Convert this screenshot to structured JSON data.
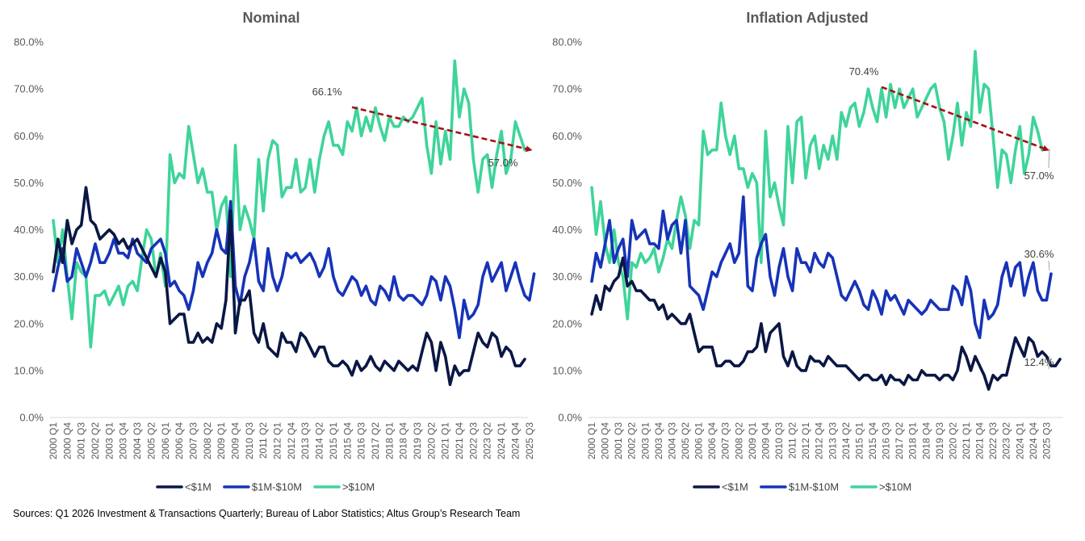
{
  "source": "Sources: Q1 2026 Investment & Transactions Quarterly; Bureau of Labor Statistics; Altus Group’s Research Team",
  "colors": {
    "lt1m": "#0a1744",
    "m1to10": "#1733b8",
    "gt10m": "#3fd49a",
    "trend": "#a50f15",
    "axis": "#d9d9d9",
    "text": "#595959"
  },
  "chart_data": [
    {
      "type": "line",
      "title": "Nominal",
      "ylim": [
        0,
        80
      ],
      "yticks": [
        0,
        10,
        20,
        30,
        40,
        50,
        60,
        70,
        80
      ],
      "yticklabels": [
        "0.0%",
        "10.0%",
        "20.0%",
        "30.0%",
        "40.0%",
        "50.0%",
        "60.0%",
        "70.0%",
        "80.0%"
      ],
      "x_labels": [
        "2000 Q1",
        "2000 Q4",
        "2001 Q3",
        "2002 Q2",
        "2003 Q1",
        "2003 Q4",
        "2004 Q3",
        "2005 Q2",
        "2006 Q1",
        "2006 Q4",
        "2007 Q3",
        "2008 Q2",
        "2009 Q1",
        "2009 Q4",
        "2010 Q3",
        "2011 Q2",
        "2012 Q1",
        "2012 Q4",
        "2013 Q3",
        "2014 Q2",
        "2015 Q1",
        "2015 Q4",
        "2016 Q3",
        "2017 Q2",
        "2018 Q1",
        "2018 Q4",
        "2019 Q3",
        "2020 Q2",
        "2021 Q1",
        "2021 Q4",
        "2022 Q3",
        "2023 Q2",
        "2024 Q1",
        "2024 Q4",
        "2025 Q3"
      ],
      "legend": [
        "<$1M",
        "$1M-$10M",
        ">$10M"
      ],
      "legend_position": "bottom",
      "series": [
        {
          "name": "<$1M",
          "values": [
            31,
            38,
            33,
            42,
            37,
            40,
            41,
            49,
            42,
            41,
            38,
            39,
            40,
            39,
            37,
            38,
            36,
            37,
            38,
            36,
            34,
            32,
            30,
            34,
            31,
            20,
            21,
            22,
            22,
            16,
            16,
            18,
            16,
            17,
            16,
            20,
            19,
            25,
            44,
            18,
            25,
            25,
            27,
            18,
            16,
            20,
            15,
            14,
            13,
            18,
            16,
            16,
            14,
            18,
            17,
            15,
            13,
            15,
            15,
            12,
            11,
            11,
            12,
            11,
            9,
            12,
            10,
            11,
            13,
            11,
            10,
            12,
            11,
            10,
            12,
            11,
            10,
            11,
            10,
            14,
            18,
            16,
            10,
            16,
            13,
            7,
            11,
            9,
            10,
            10,
            14,
            18,
            16,
            15,
            18,
            17,
            13,
            15,
            14,
            11,
            11,
            12.4
          ]
        },
        {
          "name": "$1M-$10M",
          "values": [
            27,
            32,
            36,
            29,
            30,
            36,
            33,
            30,
            33,
            37,
            33,
            33,
            35,
            38,
            35,
            35,
            34,
            38,
            35,
            34,
            33,
            36,
            37,
            38,
            35,
            28,
            29,
            27,
            26,
            23,
            27,
            33,
            30,
            33,
            35,
            40,
            36,
            35,
            46,
            28,
            24,
            30,
            33,
            38,
            29,
            27,
            36,
            30,
            27,
            30,
            35,
            34,
            35,
            33,
            34,
            35,
            33,
            30,
            32,
            36,
            30,
            27,
            26,
            28,
            30,
            29,
            26,
            28,
            25,
            24,
            28,
            27,
            25,
            30,
            26,
            25,
            26,
            26,
            25,
            24,
            26,
            30,
            29,
            25,
            30,
            28,
            23,
            17,
            25,
            21,
            22,
            24,
            30,
            33,
            29,
            31,
            33,
            27,
            30,
            33,
            29,
            26,
            25,
            30.6
          ]
        },
        {
          "name": ">$10M",
          "values": [
            42,
            33,
            40,
            30,
            21,
            33,
            31,
            30,
            15,
            26,
            26,
            27,
            24,
            26,
            28,
            24,
            28,
            29,
            27,
            34,
            40,
            38,
            30,
            35,
            28,
            56,
            50,
            52,
            51,
            62,
            56,
            50,
            53,
            48,
            48,
            40,
            45,
            47,
            30,
            58,
            40,
            45,
            42,
            38,
            55,
            44,
            55,
            59,
            58,
            47,
            49,
            49,
            55,
            48,
            49,
            55,
            48,
            55,
            60,
            63,
            58,
            58,
            56,
            63,
            61,
            66,
            60,
            64,
            61,
            66,
            62,
            59,
            64,
            62,
            62,
            64,
            63,
            64,
            66,
            68,
            58,
            52,
            63,
            54,
            61,
            55,
            76,
            64,
            70,
            67,
            55,
            48,
            55,
            56,
            49,
            56,
            61,
            52,
            55,
            63,
            60,
            57.0
          ]
        }
      ],
      "annotations": [
        {
          "text": "66.1%",
          "x": "2016 Q1",
          "y": 66.1
        },
        {
          "text": "57.0%",
          "x": "2025 Q4",
          "y": 57.0
        }
      ],
      "trendline": {
        "from": {
          "x": "2016 Q1",
          "y": 66.1
        },
        "to": {
          "x": "2025 Q4",
          "y": 57.0
        }
      }
    },
    {
      "type": "line",
      "title": "Inflation Adjusted",
      "ylim": [
        0,
        80
      ],
      "yticks": [
        0,
        10,
        20,
        30,
        40,
        50,
        60,
        70,
        80
      ],
      "yticklabels": [
        "0.0%",
        "10.0%",
        "20.0%",
        "30.0%",
        "40.0%",
        "50.0%",
        "60.0%",
        "70.0%",
        "80.0%"
      ],
      "x_labels": [
        "2000 Q1",
        "2000 Q4",
        "2001 Q3",
        "2002 Q2",
        "2003 Q1",
        "2003 Q4",
        "2004 Q3",
        "2005 Q2",
        "2006 Q1",
        "2006 Q4",
        "2007 Q3",
        "2008 Q2",
        "2009 Q1",
        "2009 Q4",
        "2010 Q3",
        "2011 Q2",
        "2012 Q1",
        "2012 Q4",
        "2013 Q3",
        "2014 Q2",
        "2015 Q1",
        "2015 Q4",
        "2016 Q3",
        "2017 Q2",
        "2018 Q1",
        "2018 Q4",
        "2019 Q3",
        "2020 Q2",
        "2021 Q1",
        "2021 Q4",
        "2022 Q3",
        "2023 Q2",
        "2024 Q1",
        "2024 Q4",
        "2025 Q3"
      ],
      "legend": [
        "<$1M",
        "$1M-$10M",
        ">$10M"
      ],
      "legend_position": "bottom",
      "series": [
        {
          "name": "<$1M",
          "values": [
            22,
            26,
            23,
            28,
            27,
            29,
            30,
            34,
            28,
            29,
            27,
            27,
            26,
            25,
            25,
            23,
            24,
            21,
            22,
            21,
            20,
            20,
            22,
            18,
            14,
            15,
            15,
            15,
            11,
            11,
            12,
            12,
            11,
            11,
            12,
            14,
            14,
            15,
            20,
            14,
            18,
            19,
            20,
            13,
            11,
            14,
            11,
            10,
            10,
            13,
            12,
            12,
            11,
            13,
            12,
            11,
            11,
            11,
            10,
            9,
            8,
            9,
            9,
            8,
            8,
            9,
            7,
            9,
            8,
            8,
            7,
            9,
            8,
            8,
            10,
            9,
            9,
            9,
            8,
            9,
            9,
            8,
            10,
            15,
            13,
            10,
            13,
            11,
            9,
            6,
            9,
            8,
            9,
            9,
            13,
            17,
            15,
            13,
            17,
            16,
            13,
            14,
            13,
            11,
            11,
            12.4
          ]
        },
        {
          "name": "$1M-$10M",
          "values": [
            29,
            35,
            32,
            37,
            42,
            33,
            36,
            38,
            30,
            42,
            38,
            39,
            40,
            37,
            37,
            36,
            44,
            38,
            41,
            42,
            35,
            42,
            28,
            27,
            26,
            23,
            27,
            31,
            30,
            33,
            35,
            37,
            33,
            35,
            47,
            28,
            27,
            34,
            37,
            39,
            30,
            26,
            32,
            36,
            30,
            27,
            36,
            33,
            33,
            31,
            35,
            33,
            32,
            35,
            34,
            30,
            26,
            25,
            27,
            29,
            27,
            24,
            23,
            27,
            25,
            22,
            27,
            25,
            26,
            24,
            22,
            25,
            24,
            23,
            22,
            23,
            25,
            24,
            23,
            23,
            23,
            28,
            27,
            24,
            30,
            27,
            20,
            17,
            25,
            21,
            22,
            24,
            30,
            33,
            28,
            32,
            33,
            26,
            30,
            33,
            27,
            25,
            25,
            30.6
          ]
        },
        {
          "name": ">$10M",
          "values": [
            49,
            39,
            46,
            37,
            33,
            40,
            33,
            30,
            21,
            33,
            32,
            35,
            33,
            34,
            36,
            31,
            34,
            38,
            36,
            42,
            47,
            43,
            36,
            42,
            41,
            61,
            56,
            57,
            57,
            67,
            60,
            56,
            60,
            53,
            53,
            49,
            52,
            50,
            33,
            61,
            47,
            50,
            45,
            41,
            62,
            50,
            63,
            64,
            51,
            58,
            60,
            53,
            58,
            55,
            60,
            55,
            65,
            62,
            66,
            67,
            62,
            65,
            70,
            66,
            63,
            70,
            64,
            71,
            66,
            70,
            66,
            68,
            70,
            64,
            66,
            68,
            70,
            71,
            66,
            63,
            55,
            60,
            67,
            58,
            65,
            62,
            78,
            65,
            71,
            70,
            60,
            49,
            57,
            56,
            50,
            57,
            62,
            52,
            56,
            64,
            61,
            57.0
          ]
        }
      ],
      "annotations": [
        {
          "text": "70.4%",
          "x": "2016 Q2",
          "y": 70.4
        },
        {
          "text": "57.0%",
          "x": "2025 Q4",
          "y": 57.0
        },
        {
          "text": "30.6%",
          "x": "2025 Q4",
          "y": 30.6
        },
        {
          "text": "12.4%",
          "x": "2025 Q4",
          "y": 12.4
        }
      ],
      "trendline": {
        "from": {
          "x": "2016 Q2",
          "y": 70.4
        },
        "to": {
          "x": "2025 Q4",
          "y": 57.0
        }
      }
    }
  ]
}
